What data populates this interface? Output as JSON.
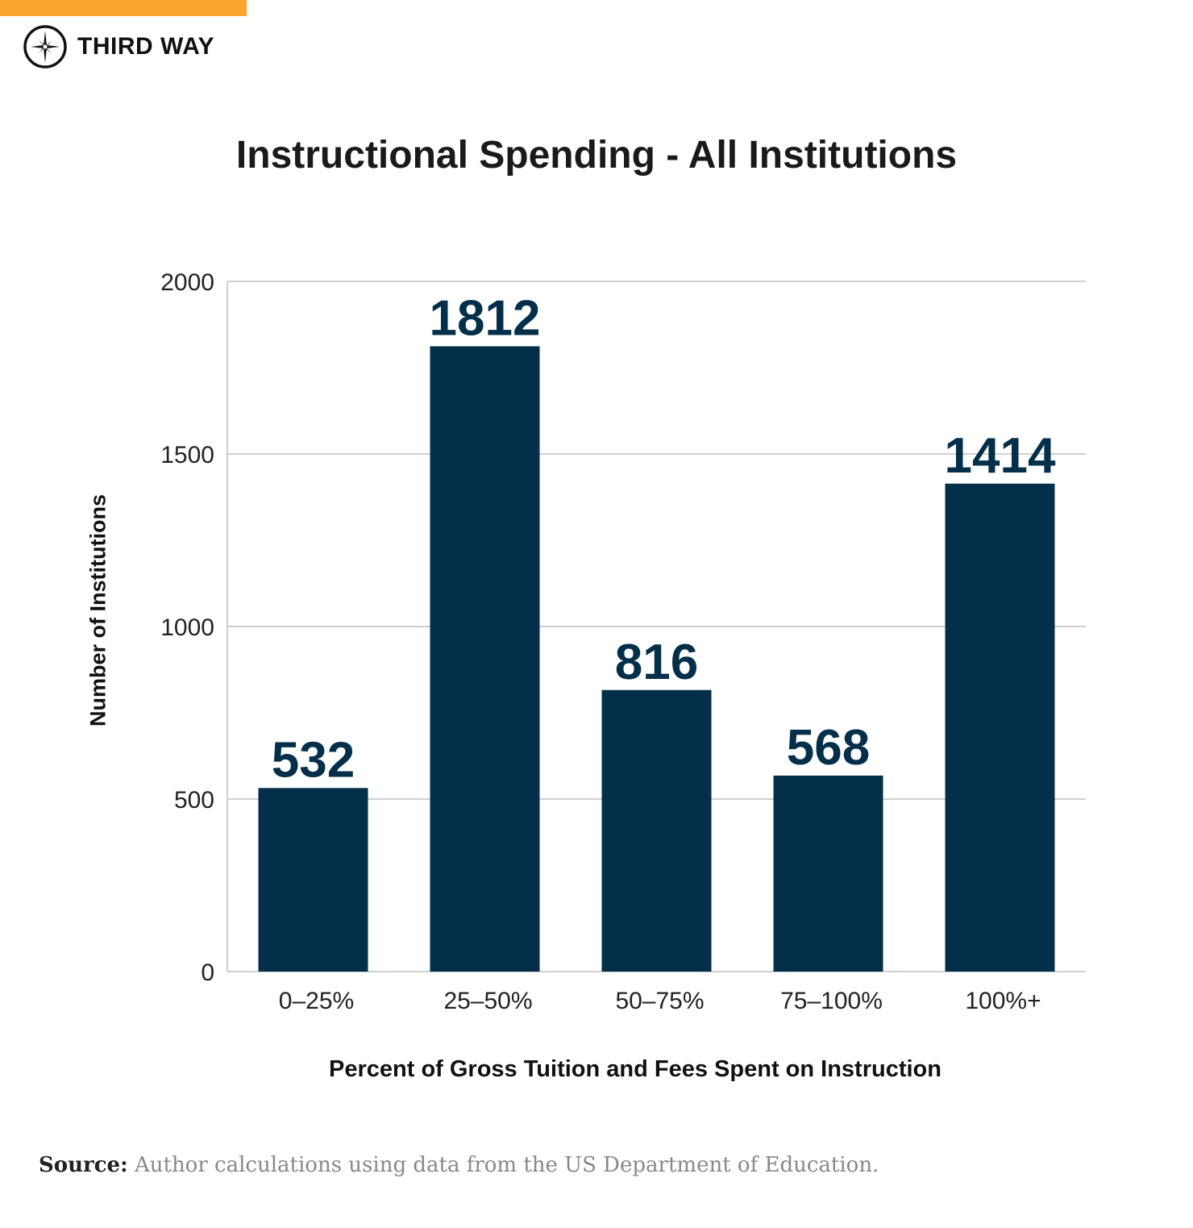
{
  "brand": {
    "name": "THIRD WAY",
    "accent_color": "#f9a52b",
    "logo_icon": "compass-star-icon"
  },
  "chart_data": {
    "type": "bar",
    "title": "Instructional Spending - All Institutions",
    "xlabel": "Percent of Gross Tuition and Fees Spent on Instruction",
    "ylabel": "Number of Institutions",
    "categories": [
      "0–25%",
      "25–50%",
      "50–75%",
      "75–100%",
      "100%+"
    ],
    "values": [
      532,
      1812,
      816,
      568,
      1414
    ],
    "data_labels": [
      "532",
      "1812",
      "816",
      "568",
      "1414"
    ],
    "ylim": [
      0,
      2000
    ],
    "yticks": [
      0,
      500,
      1000,
      1500,
      2000
    ],
    "ytick_labels": [
      "0",
      "500",
      "1000",
      "1500",
      "2000"
    ],
    "grid": true,
    "bar_color": "#032f4a"
  },
  "source": {
    "label": "Source:",
    "text": "Author calculations using data from the US Department of Education."
  }
}
